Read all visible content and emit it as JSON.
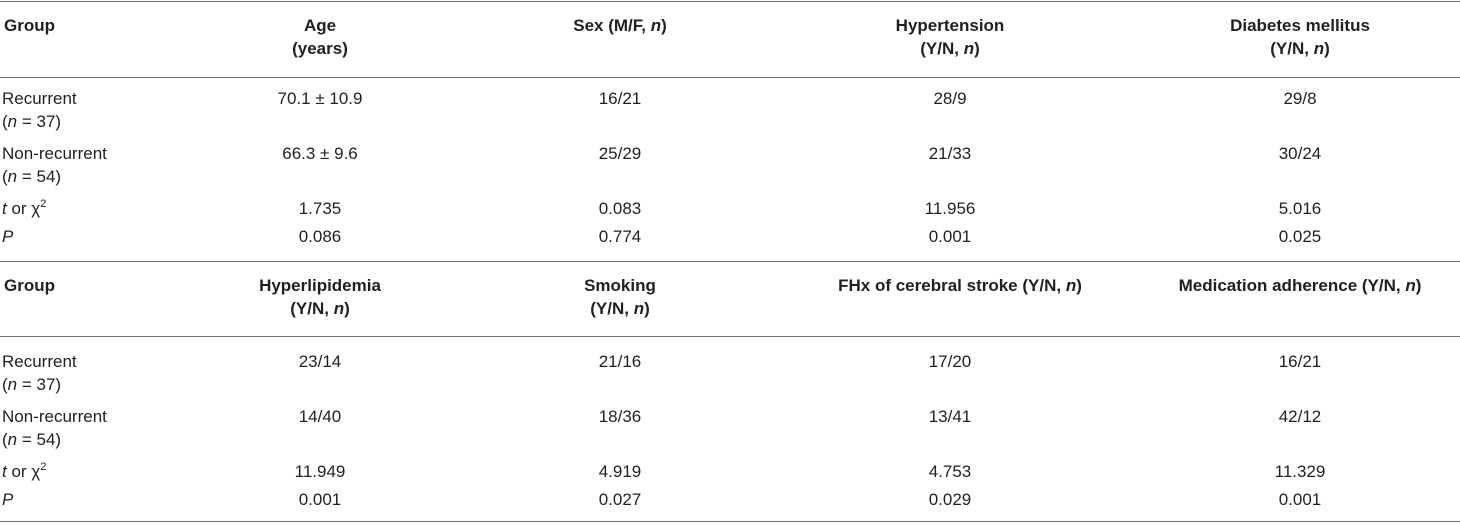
{
  "panel1": {
    "headers": [
      {
        "l1": "Group",
        "l2": ""
      },
      {
        "l1": "Age",
        "l2": "(years)"
      },
      {
        "l1": "Sex (M/F, ",
        "l1i": "n",
        "l1e": ")",
        "l2": ""
      },
      {
        "l1": "Hypertension",
        "l2": "(Y/N, ",
        "l2i": "n",
        "l2e": ")"
      },
      {
        "l1": "Diabetes mellitus",
        "l2": "(Y/N, ",
        "l2i": "n",
        "l2e": ")"
      }
    ],
    "rows": [
      {
        "label": "Recurrent",
        "sub_i": "n",
        "sub": " = 37)",
        "values": [
          "70.1 ± 10.9",
          "16/21",
          "28/9",
          "29/8"
        ]
      },
      {
        "label": "Non-recurrent",
        "sub_i": "n",
        "sub": " = 54)",
        "values": [
          "66.3 ± 9.6",
          "25/29",
          "21/33",
          "30/24"
        ]
      },
      {
        "label_i": "t",
        "label": " or χ",
        "sup": "2",
        "values": [
          "1.735",
          "0.083",
          "11.956",
          "5.016"
        ]
      },
      {
        "label_i": "P",
        "values": [
          "0.086",
          "0.774",
          "0.001",
          "0.025"
        ]
      }
    ]
  },
  "panel2": {
    "headers": [
      {
        "l1": "Group",
        "l2": ""
      },
      {
        "l1": "Hyperlipidemia",
        "l2": "(Y/N, ",
        "l2i": "n",
        "l2e": ")"
      },
      {
        "l1": "Smoking",
        "l2": "(Y/N, ",
        "l2i": "n",
        "l2e": ")"
      },
      {
        "l1": "FHx of cerebral stroke (Y/N, ",
        "l1i": "n",
        "l1e": ")",
        "l2": ""
      },
      {
        "l1": "Medication adherence (Y/N, ",
        "l1i": "n",
        "l1e": ")",
        "l2": ""
      }
    ],
    "rows": [
      {
        "label": "Recurrent",
        "sub_i": "n",
        "sub": " = 37)",
        "values": [
          "23/14",
          "21/16",
          "17/20",
          "16/21"
        ]
      },
      {
        "label": "Non-recurrent",
        "sub_i": "n",
        "sub": " = 54)",
        "values": [
          "14/40",
          "18/36",
          "13/41",
          "42/12"
        ]
      },
      {
        "label_i": "t",
        "label": " or χ",
        "sup": "2",
        "values": [
          "11.949",
          "4.919",
          "4.753",
          "11.329"
        ]
      },
      {
        "label_i": "P",
        "values": [
          "0.001",
          "0.027",
          "0.029",
          "0.001"
        ]
      }
    ]
  },
  "sub_open": "("
}
